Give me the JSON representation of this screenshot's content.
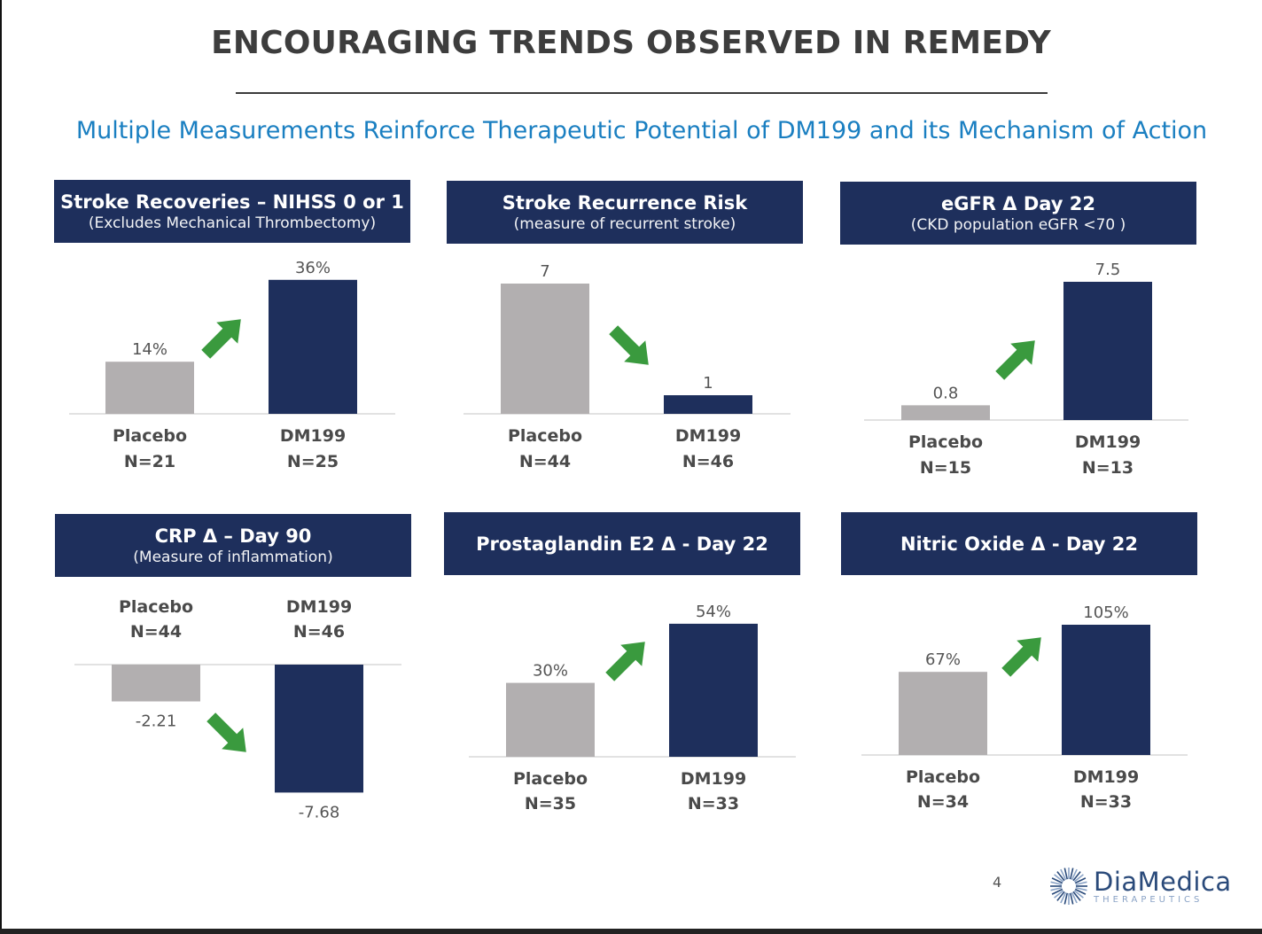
{
  "title": "ENCOURAGING TRENDS OBSERVED IN REMEDY",
  "subtitle": "Multiple Measurements Reinforce Therapeutic Potential of DM199 and its Mechanism of Action",
  "page_number": "4",
  "logo": {
    "name": "DiaMedica",
    "tagline": "THERAPEUTICS",
    "icon": "starburst-logo-icon"
  },
  "colors": {
    "placebo": "#b2afb0",
    "dm199": "#1e2f5c",
    "arrow": "#3a9a3e",
    "header": "#1e2f5c",
    "subtitle": "#1a7fc1"
  },
  "chart_data": [
    {
      "type": "bar",
      "title": "Stroke Recoveries – NIHSS 0 or 1",
      "subtitle": "(Excludes Mechanical Thrombectomy)",
      "categories": [
        "Placebo",
        "DM199"
      ],
      "n_labels": [
        "N=21",
        "N=25"
      ],
      "values": [
        14,
        36
      ],
      "value_labels": [
        "14%",
        "36%"
      ],
      "trend": "up"
    },
    {
      "type": "bar",
      "title": "Stroke Recurrence Risk",
      "subtitle": "(measure of recurrent stroke)",
      "categories": [
        "Placebo",
        "DM199"
      ],
      "n_labels": [
        "N=44",
        "N=46"
      ],
      "values": [
        7,
        1
      ],
      "value_labels": [
        "7",
        "1"
      ],
      "trend": "down"
    },
    {
      "type": "bar",
      "title": "eGFR Δ Day 22",
      "subtitle": "(CKD population eGFR <70 )",
      "categories": [
        "Placebo",
        "DM199"
      ],
      "n_labels": [
        "N=15",
        "N=13"
      ],
      "values": [
        0.8,
        7.5
      ],
      "value_labels": [
        "0.8",
        "7.5"
      ],
      "trend": "up"
    },
    {
      "type": "bar",
      "title": "CRP Δ  – Day 90",
      "subtitle": "(Measure of inflammation)",
      "categories": [
        "Placebo",
        "DM199"
      ],
      "n_labels": [
        "N=44",
        "N=46"
      ],
      "values": [
        -2.21,
        -7.68
      ],
      "value_labels": [
        "-2.21",
        "-7.68"
      ],
      "trend": "down"
    },
    {
      "type": "bar",
      "title": "Prostaglandin E2 Δ  - Day 22",
      "subtitle": "",
      "categories": [
        "Placebo",
        "DM199"
      ],
      "n_labels": [
        "N=35",
        "N=33"
      ],
      "values": [
        30,
        54
      ],
      "value_labels": [
        "30%",
        "54%"
      ],
      "trend": "up"
    },
    {
      "type": "bar",
      "title": "Nitric Oxide Δ  - Day 22",
      "subtitle": "",
      "categories": [
        "Placebo",
        "DM199"
      ],
      "n_labels": [
        "N=34",
        "N=33"
      ],
      "values": [
        67,
        105
      ],
      "value_labels": [
        "67%",
        "105%"
      ],
      "trend": "up"
    }
  ]
}
